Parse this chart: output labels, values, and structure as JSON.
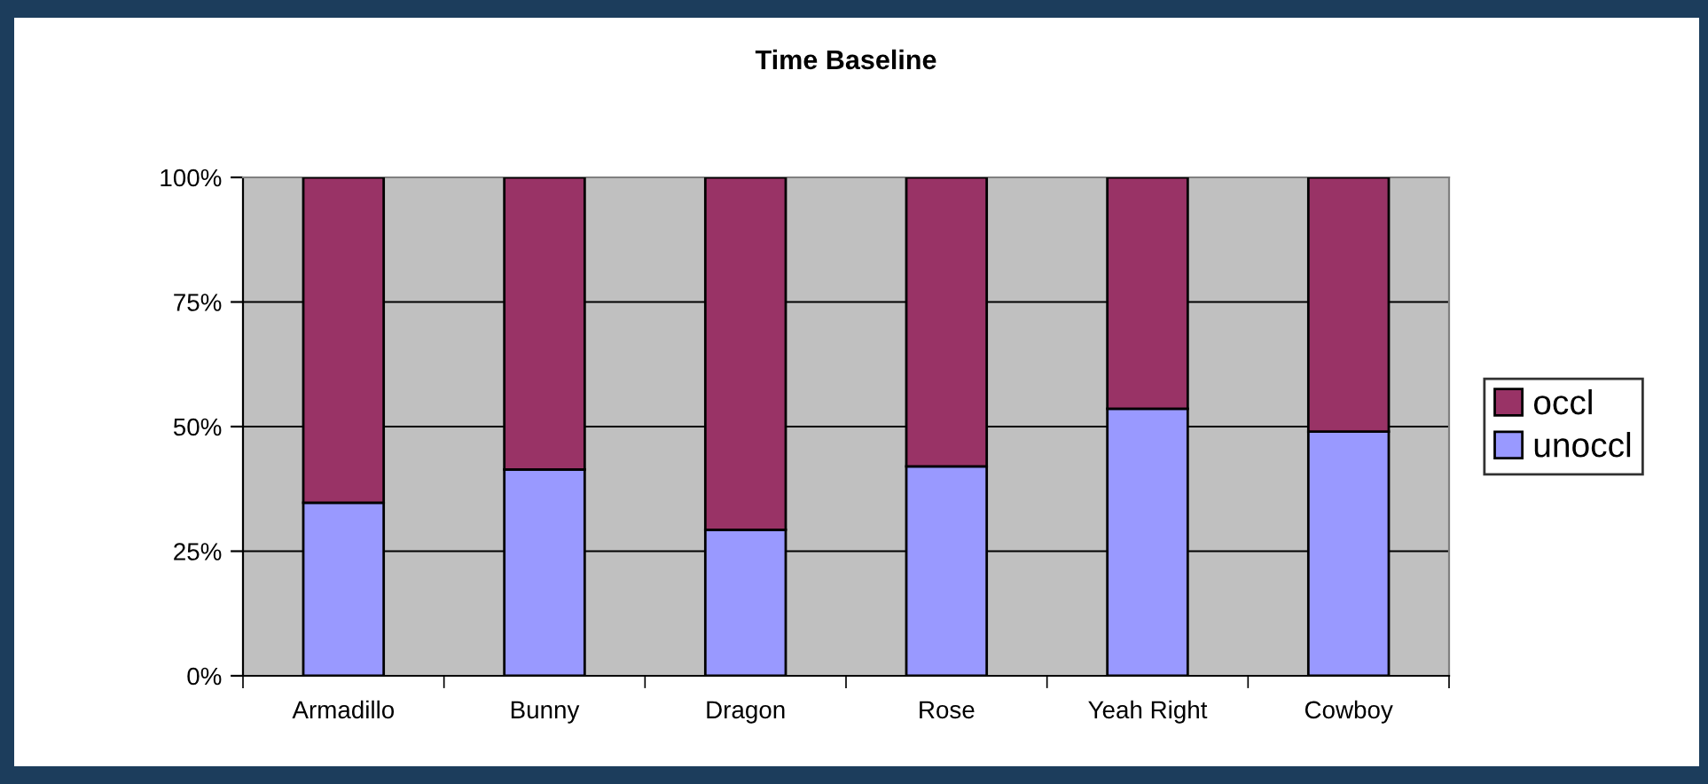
{
  "chart_data": {
    "type": "bar",
    "title": "Time Baseline",
    "stacked": true,
    "categories": [
      "Armadillo",
      "Bunny",
      "Dragon",
      "Rose",
      "Yeah Right",
      "Cowboy"
    ],
    "series": [
      {
        "name": "unoccl",
        "color": "#9999ff",
        "values": [
          34.7,
          41.4,
          29.3,
          42.0,
          53.6,
          49.0
        ]
      },
      {
        "name": "occl",
        "color": "#993366",
        "values": [
          65.3,
          58.6,
          70.7,
          58.0,
          46.4,
          51.0
        ]
      }
    ],
    "ylim": [
      0,
      100
    ],
    "yticks": [
      {
        "value": 0,
        "label": "0%"
      },
      {
        "value": 25,
        "label": "25%"
      },
      {
        "value": 50,
        "label": "50%"
      },
      {
        "value": 75,
        "label": "75%"
      },
      {
        "value": 100,
        "label": "100%"
      }
    ],
    "grid": "y",
    "legend": "right"
  }
}
